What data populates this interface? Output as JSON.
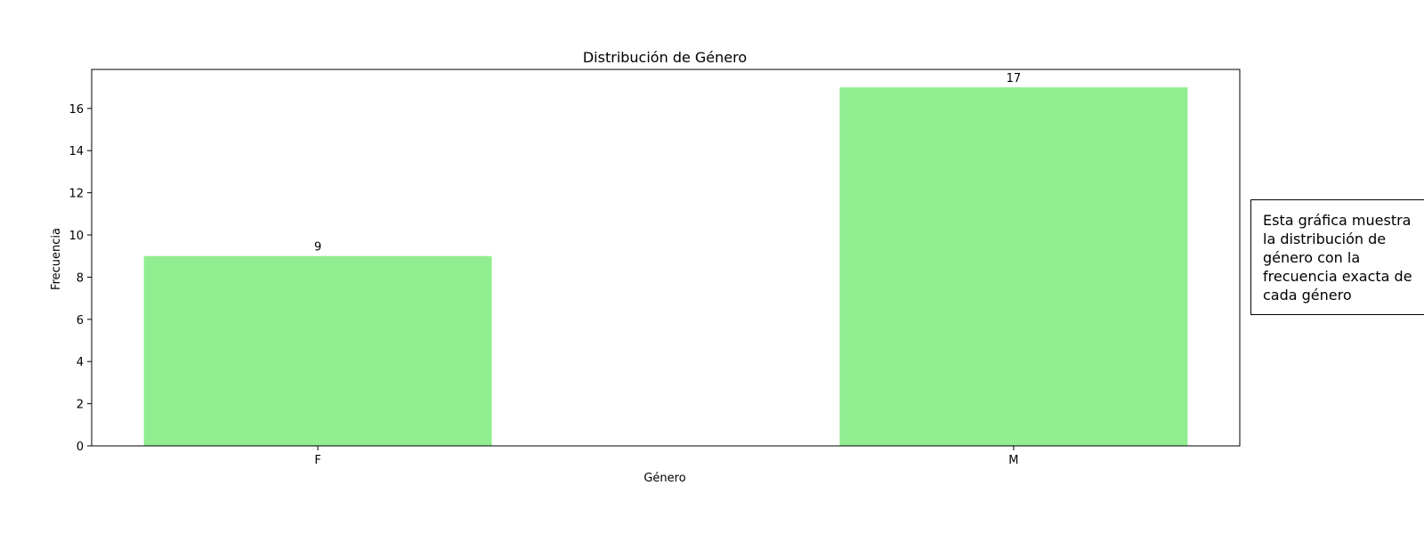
{
  "chart_data": {
    "type": "bar",
    "title": "Distribución de Género",
    "xlabel": "Género",
    "ylabel": "Frecuencia",
    "categories": [
      "F",
      "M"
    ],
    "values": [
      9,
      17
    ],
    "data_labels": [
      "9",
      "17"
    ],
    "ylim": [
      0,
      17.85
    ],
    "yticks": [
      0,
      2,
      4,
      6,
      8,
      10,
      12,
      14,
      16
    ],
    "bar_color": "#90ee90",
    "grid": false,
    "legend": "none"
  },
  "annotation": {
    "text": "Esta gráfica muestra\nla distribución de\ngénero con la\nfrecuencia exacta de\ncada género"
  }
}
